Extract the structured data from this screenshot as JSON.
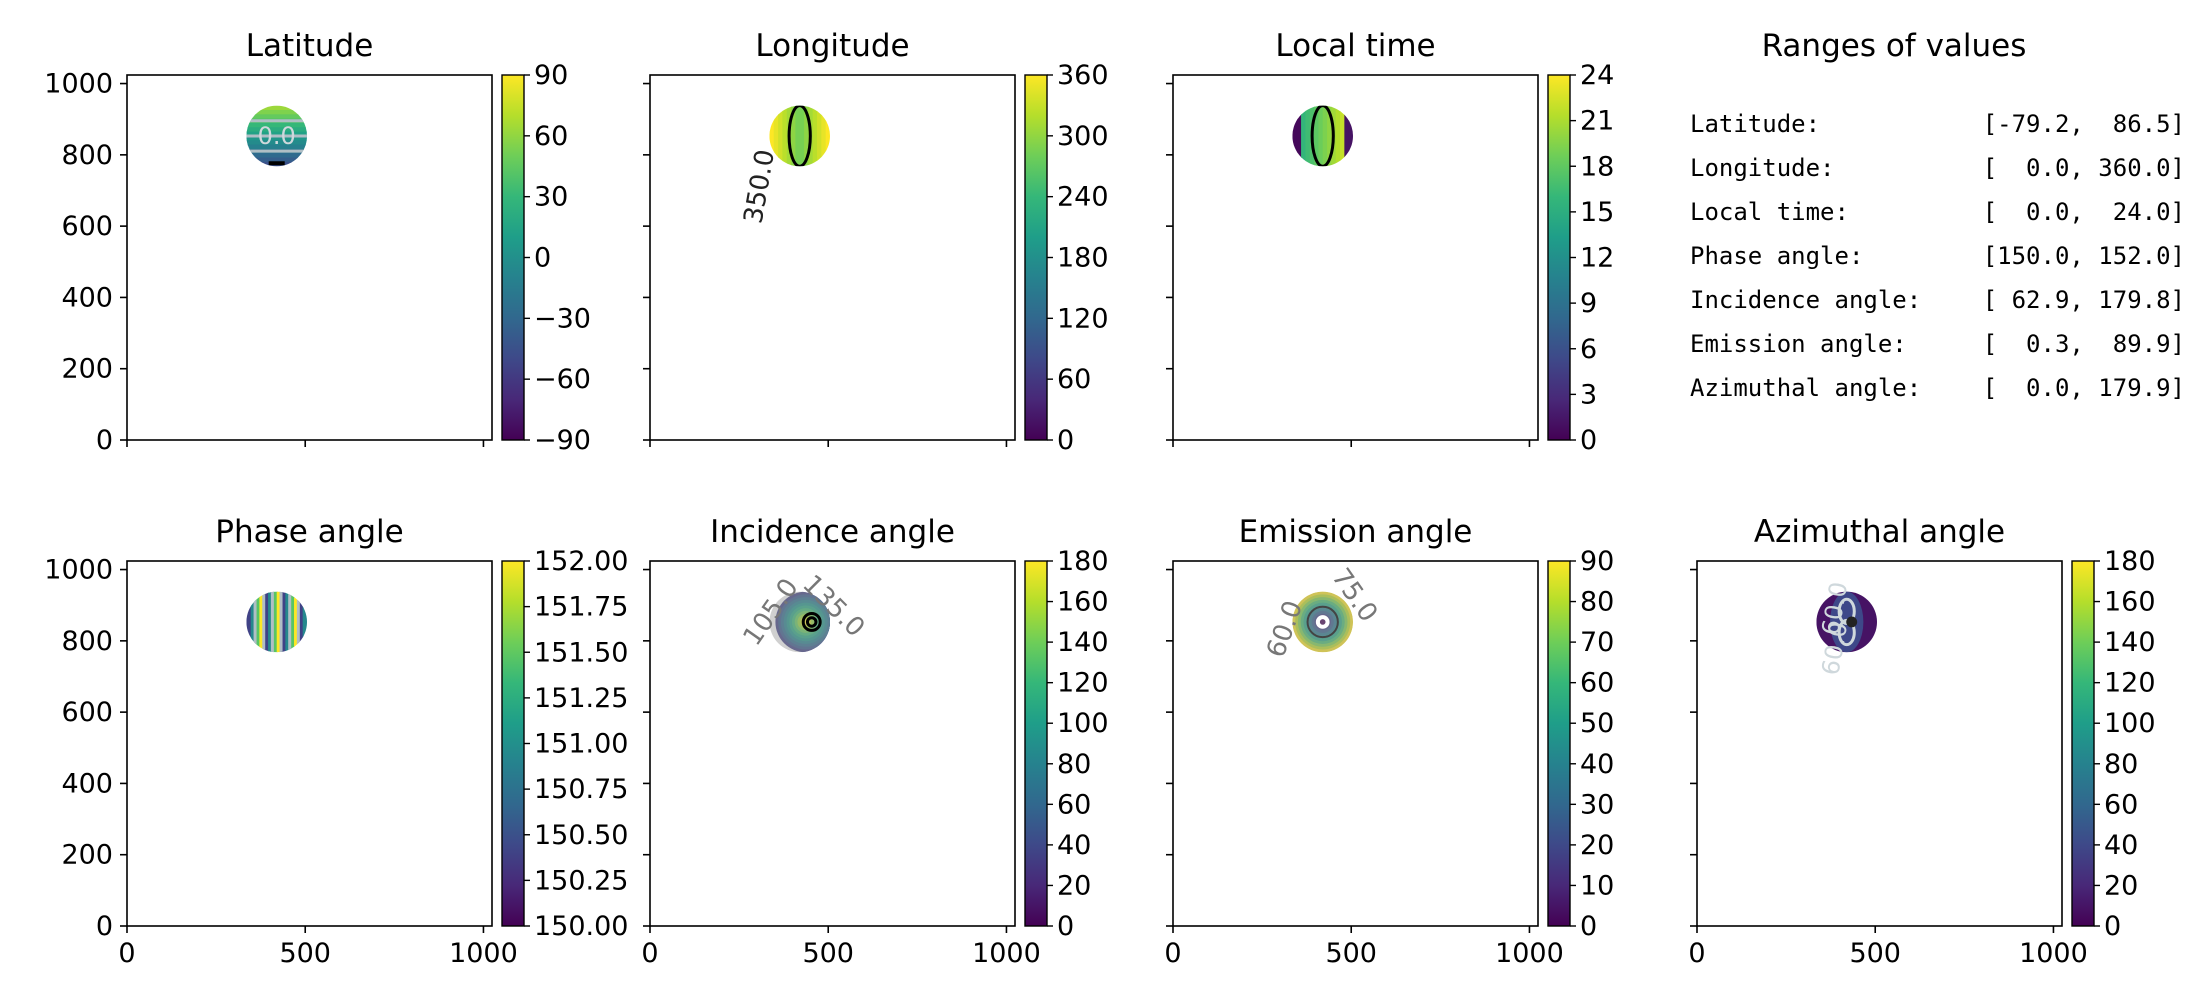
{
  "colors": {
    "viridis_stops": [
      "#440154",
      "#482878",
      "#3e4989",
      "#31688e",
      "#26828e",
      "#1f9e89",
      "#35b779",
      "#6ece58",
      "#b5de2b",
      "#fde725"
    ]
  },
  "chart_data": [
    {
      "type": "heatmap",
      "title": "Latitude",
      "xlim": [
        0,
        1024
      ],
      "ylim": [
        0,
        1024
      ],
      "xticks": [],
      "yticks": [
        "0",
        "200",
        "400",
        "600",
        "800",
        "1000"
      ],
      "colorbar": {
        "range": [
          -90,
          90
        ],
        "ticks": [
          "90",
          "60",
          "30",
          "0",
          "−30",
          "−60",
          "−90"
        ]
      },
      "disk": {
        "cx": 420,
        "cy": 853,
        "r": 85
      },
      "pattern": "horizontal",
      "contour_labels": [
        "0.0"
      ]
    },
    {
      "type": "heatmap",
      "title": "Longitude",
      "xlim": [
        0,
        1024
      ],
      "ylim": [
        0,
        1024
      ],
      "xticks": [],
      "yticks": [],
      "colorbar": {
        "range": [
          0,
          360
        ],
        "ticks": [
          "360",
          "300",
          "240",
          "180",
          "120",
          "60",
          "0"
        ]
      },
      "disk": {
        "cx": 420,
        "cy": 853,
        "r": 85
      },
      "pattern": "vertical",
      "contour_labels": [
        "350.0"
      ]
    },
    {
      "type": "heatmap",
      "title": "Local time",
      "xlim": [
        0,
        1024
      ],
      "ylim": [
        0,
        1024
      ],
      "xticks": [],
      "yticks": [],
      "colorbar": {
        "range": [
          0,
          24
        ],
        "ticks": [
          "24",
          "21",
          "18",
          "15",
          "12",
          "9",
          "6",
          "3",
          "0"
        ]
      },
      "disk": {
        "cx": 420,
        "cy": 853,
        "r": 85
      },
      "pattern": "vertical",
      "contour_labels": []
    },
    {
      "type": "table",
      "title": "Ranges of values",
      "rows": [
        {
          "label": "Latitude:",
          "range": "[-79.2,  86.5]"
        },
        {
          "label": "Longitude:",
          "range": "[  0.0, 360.0]"
        },
        {
          "label": "Local time:",
          "range": "[  0.0,  24.0]"
        },
        {
          "label": "Phase angle:",
          "range": "[150.0, 152.0]"
        },
        {
          "label": "Incidence angle:",
          "range": "[ 62.9, 179.8]"
        },
        {
          "label": "Emission angle:",
          "range": "[  0.3,  89.9]"
        },
        {
          "label": "Azimuthal angle:",
          "range": "[  0.0, 179.9]"
        }
      ]
    },
    {
      "type": "heatmap",
      "title": "Phase angle",
      "xlim": [
        0,
        1024
      ],
      "ylim": [
        0,
        1024
      ],
      "xticks": [
        "0",
        "500",
        "1000"
      ],
      "yticks": [
        "0",
        "200",
        "400",
        "600",
        "800",
        "1000"
      ],
      "colorbar": {
        "range": [
          150.0,
          152.0
        ],
        "ticks": [
          "152.00",
          "151.75",
          "151.50",
          "151.25",
          "151.00",
          "150.75",
          "150.50",
          "150.25",
          "150.00"
        ]
      },
      "disk": {
        "cx": 420,
        "cy": 853,
        "r": 85
      },
      "pattern": "vertical",
      "contour_labels": []
    },
    {
      "type": "heatmap",
      "title": "Incidence angle",
      "xlim": [
        0,
        1024
      ],
      "ylim": [
        0,
        1024
      ],
      "xticks": [
        "0",
        "500",
        "1000"
      ],
      "yticks": [],
      "colorbar": {
        "range": [
          0,
          180
        ],
        "ticks": [
          "180",
          "160",
          "140",
          "120",
          "100",
          "80",
          "60",
          "40",
          "20",
          "0"
        ]
      },
      "disk": {
        "cx": 420,
        "cy": 853,
        "r": 85
      },
      "pattern": "rings",
      "contour_labels": [
        "105.0",
        "135.0"
      ]
    },
    {
      "type": "heatmap",
      "title": "Emission angle",
      "xlim": [
        0,
        1024
      ],
      "ylim": [
        0,
        1024
      ],
      "xticks": [
        "0",
        "500",
        "1000"
      ],
      "yticks": [],
      "colorbar": {
        "range": [
          0,
          90
        ],
        "ticks": [
          "90",
          "80",
          "70",
          "60",
          "50",
          "40",
          "30",
          "20",
          "10",
          "0"
        ]
      },
      "disk": {
        "cx": 420,
        "cy": 853,
        "r": 85
      },
      "pattern": "rings",
      "contour_labels": [
        "75.0",
        "60.0"
      ]
    },
    {
      "type": "heatmap",
      "title": "Azimuthal angle",
      "xlim": [
        0,
        1024
      ],
      "ylim": [
        0,
        1024
      ],
      "xticks": [
        "0",
        "500",
        "1000"
      ],
      "yticks": [],
      "colorbar": {
        "range": [
          0,
          180
        ],
        "ticks": [
          "180",
          "160",
          "140",
          "120",
          "100",
          "80",
          "60",
          "40",
          "20",
          "0"
        ]
      },
      "disk": {
        "cx": 420,
        "cy": 853,
        "r": 85
      },
      "pattern": "lobes",
      "contour_labels": [
        "60.0",
        "60.0"
      ]
    }
  ]
}
